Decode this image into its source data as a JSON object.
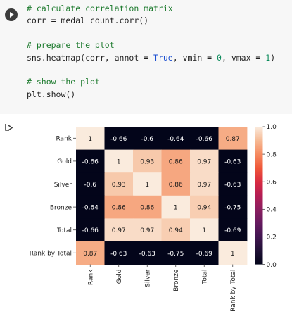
{
  "code_cell": {
    "lines": [
      [
        {
          "t": "# calculate correlation matrix",
          "c": "comment"
        }
      ],
      [
        {
          "t": "corr = medal_count.corr()",
          "c": "plain"
        }
      ],
      [
        {
          "t": "",
          "c": "plain"
        }
      ],
      [
        {
          "t": "# prepare the plot",
          "c": "comment"
        }
      ],
      [
        {
          "t": "sns.heatmap(corr, annot = ",
          "c": "plain"
        },
        {
          "t": "True",
          "c": "kw"
        },
        {
          "t": ", vmin = ",
          "c": "plain"
        },
        {
          "t": "0",
          "c": "num"
        },
        {
          "t": ", vmax = ",
          "c": "plain"
        },
        {
          "t": "1",
          "c": "num"
        },
        {
          "t": ")",
          "c": "plain"
        }
      ],
      [
        {
          "t": "",
          "c": "plain"
        }
      ],
      [
        {
          "t": "# show the plot",
          "c": "comment"
        }
      ],
      [
        {
          "t": "plt.show()",
          "c": "plain"
        }
      ]
    ]
  },
  "icons": {
    "run": "play-circle-icon",
    "output": "output-arrow-icon"
  },
  "chart_data": {
    "type": "heatmap",
    "rows": [
      "Rank",
      "Gold",
      "Silver",
      "Bronze",
      "Total",
      "Rank by Total"
    ],
    "cols": [
      "Rank",
      "Gold",
      "Silver",
      "Bronze",
      "Total",
      "Rank by Total"
    ],
    "values": [
      [
        1,
        -0.66,
        -0.6,
        -0.64,
        -0.66,
        0.87
      ],
      [
        -0.66,
        1,
        0.93,
        0.86,
        0.97,
        -0.63
      ],
      [
        -0.6,
        0.93,
        1,
        0.86,
        0.97,
        -0.63
      ],
      [
        -0.64,
        0.86,
        0.86,
        1,
        0.94,
        -0.75
      ],
      [
        -0.66,
        0.97,
        0.97,
        0.94,
        1,
        -0.69
      ],
      [
        0.87,
        -0.63,
        -0.63,
        -0.75,
        -0.69,
        1
      ]
    ],
    "vmin": 0,
    "vmax": 1,
    "colormap": "rocket",
    "colorbar_ticks": [
      "1.0",
      "0.8",
      "0.6",
      "0.4",
      "0.2",
      "0.0"
    ]
  }
}
